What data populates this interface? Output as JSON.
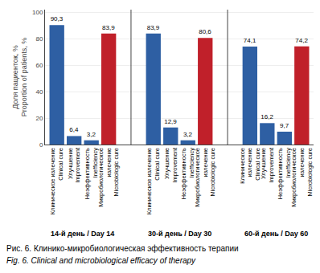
{
  "chart_data": {
    "type": "bar",
    "categories": [
      [
        "14-й день / Day 14",
        "Клиническое излечение\nClinical cure"
      ],
      [
        "14-й день / Day 14",
        "Улучшение\nImprovement"
      ],
      [
        "14-й день / Day 14",
        "Неэффективность\nInefficiency"
      ],
      [
        "14-й день / Day 14",
        "Микробиологическое\nизлечение\nMicrobiologic cure"
      ],
      [
        "30-й день / Day 30",
        "Клиническое излечение\nClinical cure"
      ],
      [
        "30-й день / Day 30",
        "Улучшение\nImprovement"
      ],
      [
        "30-й день / Day 30",
        "Неэффективность\nInefficiency"
      ],
      [
        "30-й день / Day 30",
        "Микробиологическое\nизлечение\nMicrobiologic cure"
      ],
      [
        "60-й день / Day 60",
        "Клиническое\nизлечение\nClinical cure"
      ],
      [
        "60-й день / Day 60",
        "Улучшение\nImprovement"
      ],
      [
        "60-й день / Day 60",
        "Неэффективность\nInefficiency"
      ],
      [
        "60-й день / Day 60",
        "Микробиологическое\nизлечение\nMicrobiologic cure"
      ]
    ],
    "values": [
      90.3,
      6.4,
      3.2,
      83.9,
      83.9,
      12.9,
      3.2,
      80.6,
      74.1,
      16.2,
      9.7,
      74.2
    ],
    "value_labels": [
      "90,3",
      "6,4",
      "3,2",
      "83,9",
      "83,9",
      "12,9",
      "3,2",
      "80,6",
      "74,1",
      "16,2",
      "9,7",
      "74,2"
    ],
    "data_labels": true,
    "colors": [
      "#2e5fa3",
      "#2e5fa3",
      "#2e5fa3",
      "#c0202a",
      "#2e5fa3",
      "#2e5fa3",
      "#2e5fa3",
      "#c0202a",
      "#2e5fa3",
      "#2e5fa3",
      "#2e5fa3",
      "#c0202a"
    ],
    "ylabel": "Доля пациенток, %\nProportion of patients, %",
    "ylim": [
      0,
      102
    ],
    "yticks": [
      0,
      20,
      40,
      60,
      80,
      100
    ],
    "grid": true,
    "annotations": [
      "Рис. 6. Клинико-микробиологическая эффективность терапии",
      "Fig. 6. Clinical and microbiological efficacy of therapy"
    ]
  }
}
